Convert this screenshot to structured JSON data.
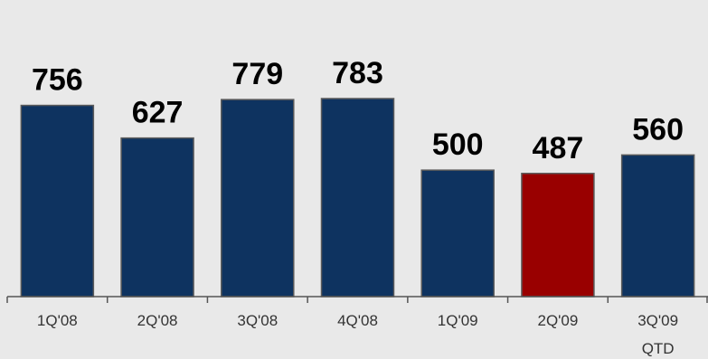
{
  "chart_data": {
    "type": "bar",
    "title": "",
    "xlabel": "",
    "ylabel": "",
    "categories": [
      "1Q'08",
      "2Q'08",
      "3Q'08",
      "4Q'08",
      "1Q'09",
      "2Q'09",
      "3Q'09"
    ],
    "category_sublabels": [
      "",
      "",
      "",
      "",
      "",
      "",
      "QTD"
    ],
    "values": [
      756,
      627,
      779,
      783,
      500,
      487,
      560
    ],
    "value_labels": [
      "756",
      "627",
      "779",
      "783",
      "500",
      "487",
      "560"
    ],
    "ylim": [
      0,
      783
    ],
    "grid": false,
    "legend": "none",
    "colors": {
      "bar": "#0e3360",
      "highlight": "#990000",
      "background": "#e9e9e9"
    },
    "highlight_index": 5
  }
}
